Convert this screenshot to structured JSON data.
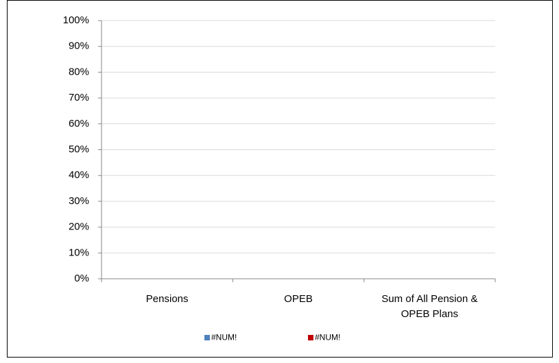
{
  "chart_data": {
    "type": "bar",
    "stacked": true,
    "categories": [
      "Pensions",
      "OPEB",
      "Sum of All Pension & OPEB Plans"
    ],
    "series": [
      {
        "name": "#NUM!",
        "color": "#4f81bd",
        "values": [
          null,
          null,
          null
        ]
      },
      {
        "name": "#NUM!",
        "color": "#c00000",
        "values": [
          null,
          null,
          null
        ]
      }
    ],
    "ylim": [
      0,
      100
    ],
    "yticks": [
      {
        "value": 0,
        "label": "0%"
      },
      {
        "value": 10,
        "label": "10%"
      },
      {
        "value": 20,
        "label": "20%"
      },
      {
        "value": 30,
        "label": "30%"
      },
      {
        "value": 40,
        "label": "40%"
      },
      {
        "value": 50,
        "label": "50%"
      },
      {
        "value": 60,
        "label": "60%"
      },
      {
        "value": 70,
        "label": "70%"
      },
      {
        "value": 80,
        "label": "80%"
      },
      {
        "value": 90,
        "label": "90%"
      },
      {
        "value": 100,
        "label": "100%"
      }
    ],
    "grid": true,
    "legend": "bottom"
  }
}
